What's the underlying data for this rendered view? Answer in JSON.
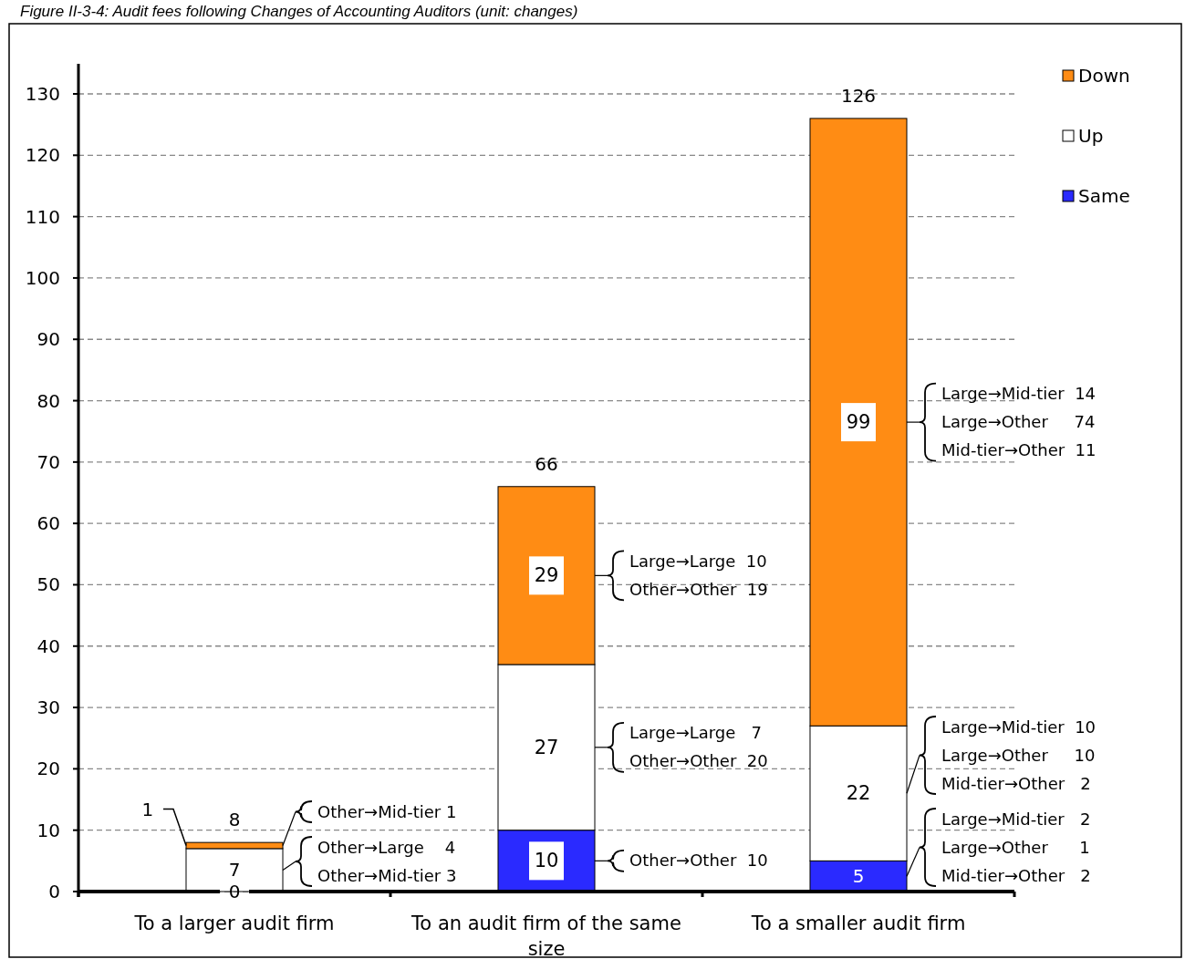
{
  "chart_data": {
    "type": "bar",
    "stacked": true,
    "title": "Figure II-3-4: Audit fees following Changes of Accounting Auditors (unit: changes)",
    "categories": [
      "To a larger audit firm",
      "To an audit firm of the same size",
      "To a smaller audit firm"
    ],
    "series": [
      {
        "name": "Same",
        "color": "#2a2aff",
        "values": [
          0,
          10,
          5
        ]
      },
      {
        "name": "Up",
        "color": "#ffffff",
        "values": [
          7,
          27,
          22
        ]
      },
      {
        "name": "Down",
        "color": "#ff8c14",
        "values": [
          1,
          29,
          99
        ]
      }
    ],
    "ylim": [
      0,
      130
    ],
    "yticks": [
      0,
      10,
      20,
      30,
      40,
      50,
      60,
      70,
      80,
      90,
      100,
      110,
      120,
      130
    ],
    "grid": "y",
    "legend": "top right",
    "data_labels": true,
    "totals": [
      "8",
      "66",
      "126"
    ],
    "annotations": [
      "Other→Mid-tier 1",
      "Other→Large    4\nOther→Mid-tier 3",
      "Large→Large  10\nOther→Other  19",
      "Large→Large   7\nOther→Other  20",
      "Other→Other  10",
      "Large→Mid-tier  14\nLarge→Other     74\nMid-tier→Other  11",
      "Large→Mid-tier  10\nLarge→Other     10\nMid-tier→Other   2",
      "Large→Mid-tier   2\nLarge→Other      1\nMid-tier→Other   2"
    ]
  }
}
